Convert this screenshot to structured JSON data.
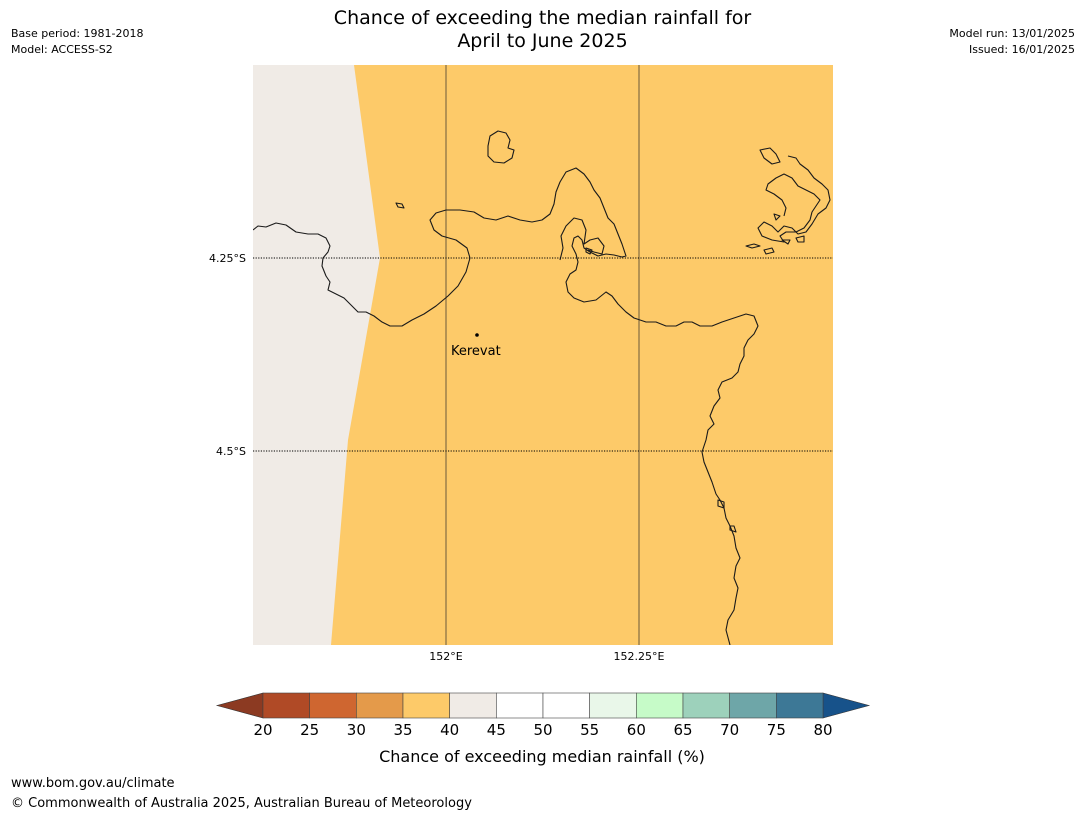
{
  "header": {
    "title_line1": "Chance of exceeding the median rainfall for",
    "title_line2": "April to June 2025",
    "base_period": "Base period: 1981-2018",
    "model": "Model: ACCESS-S2",
    "model_run": "Model run: 13/01/2025",
    "issued": "Issued: 16/01/2025"
  },
  "map": {
    "lat_labels": [
      "4.25°S",
      "4.5°S"
    ],
    "lon_labels": [
      "152°E",
      "152.25°E"
    ],
    "places": [
      {
        "name": "Kerevat"
      }
    ],
    "colors": {
      "prob_35_40": "#fdca69",
      "prob_40_45": "#f0ebe6",
      "coastline": "#1a1a1a"
    }
  },
  "legend": {
    "title": "Chance of exceeding median rainfall (%)",
    "ticks": [
      "20",
      "25",
      "30",
      "35",
      "40",
      "45",
      "50",
      "55",
      "60",
      "65",
      "70",
      "75",
      "80"
    ],
    "colors": [
      "#b04a26",
      "#cf6630",
      "#e49a4a",
      "#fdca69",
      "#f0ebe6",
      "#ffffff",
      "#ffffff",
      "#e9f7e9",
      "#c6fbc8",
      "#9dd1bb",
      "#6ea6a8",
      "#3d7896"
    ],
    "under_color": "#8c3a22",
    "over_color": "#17528a"
  },
  "footer": {
    "url": "www.bom.gov.au/climate",
    "copyright": "© Commonwealth of Australia 2025, Australian Bureau of Meteorology"
  }
}
